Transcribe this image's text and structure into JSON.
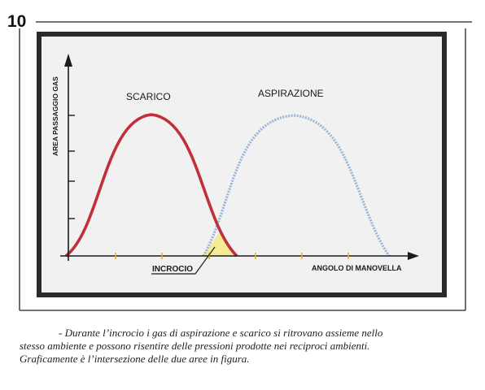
{
  "figure": {
    "number": "10",
    "y_axis_label": "AREA PASSAGGIO GAS",
    "x_axis_label": "ANGOLO DI MANOVELLA",
    "curves": [
      {
        "label": "SCARICO",
        "color": "#c0303a"
      },
      {
        "label": "ASPIRAZIONE",
        "color": "#9ab4d8"
      }
    ],
    "overlap_label": "INCROCIO",
    "overlap_color": "#f3ec92",
    "plot_background": "#f1f1f1",
    "frame_color": "#2a2a2a"
  },
  "caption": {
    "line1": "- Durante l’incrocio i gas di aspirazione e scarico si ritrovano assieme nello",
    "line2": "stesso ambiente e possono risentire delle pressioni prodotte nei reciproci ambienti.",
    "line3": "Graficamente è l’intersezione delle due aree in figura."
  }
}
